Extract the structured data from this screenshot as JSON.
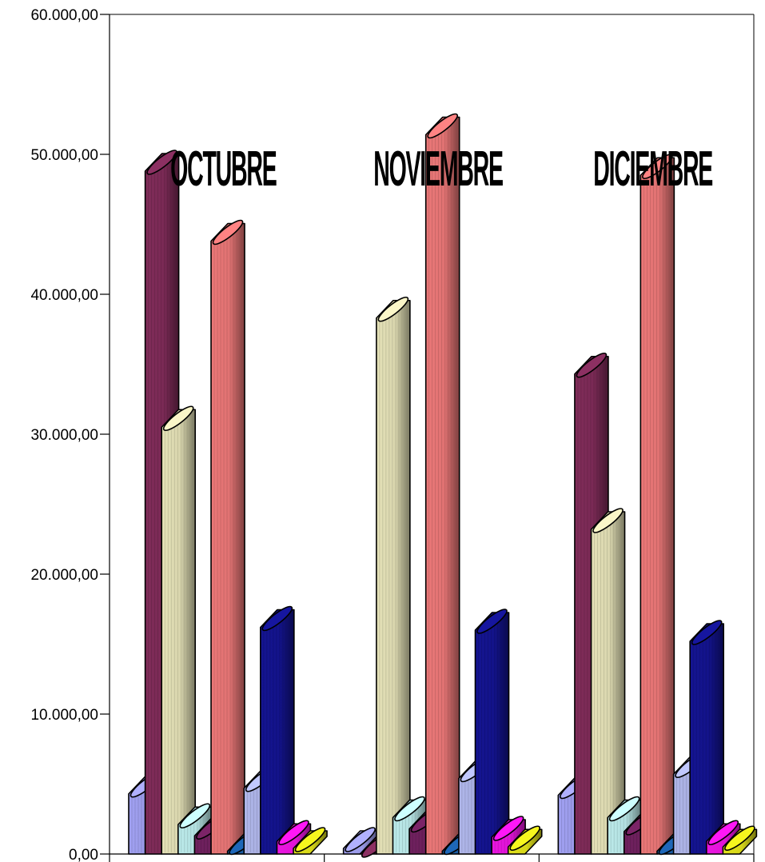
{
  "chart_data": {
    "type": "bar",
    "title": "",
    "xlabel": "",
    "ylabel": "",
    "ylim": [
      0,
      60000
    ],
    "y_ticks": [
      "0,00",
      "10.000,00",
      "20.000,00",
      "30.000,00",
      "40.000,00",
      "50.000,00",
      "60.000,00"
    ],
    "y_tick_values": [
      0,
      10000,
      20000,
      30000,
      40000,
      50000,
      60000
    ],
    "grid": false,
    "style": "3d-cylinder",
    "categories": [
      "OCTUBRE",
      "NOVIEMBRE",
      "DICIEMBRE"
    ],
    "series": [
      {
        "color": "#9999e6",
        "values": [
          4300,
          400,
          4200
        ]
      },
      {
        "color": "#7a2a55",
        "values": [
          48800,
          0,
          34300
        ]
      },
      {
        "color": "#d9d6ae",
        "values": [
          30500,
          38300,
          23200
        ]
      },
      {
        "color": "#b3e0e0",
        "values": [
          2100,
          2600,
          2600
        ]
      },
      {
        "color": "#6b1f5a",
        "values": [
          1300,
          1800,
          1600
        ]
      },
      {
        "color": "#e07272",
        "values": [
          43800,
          51400,
          48500
        ]
      },
      {
        "color": "#1a5aa0",
        "values": [
          200,
          200,
          200
        ]
      },
      {
        "color": "#a8aee0",
        "values": [
          4700,
          5400,
          5700
        ]
      },
      {
        "color": "#13138a",
        "values": [
          16200,
          16000,
          15200
        ]
      },
      {
        "color": "#e014d6",
        "values": [
          900,
          1200,
          900
        ]
      },
      {
        "color": "#d6d61a",
        "values": [
          400,
          500,
          500
        ]
      }
    ]
  }
}
